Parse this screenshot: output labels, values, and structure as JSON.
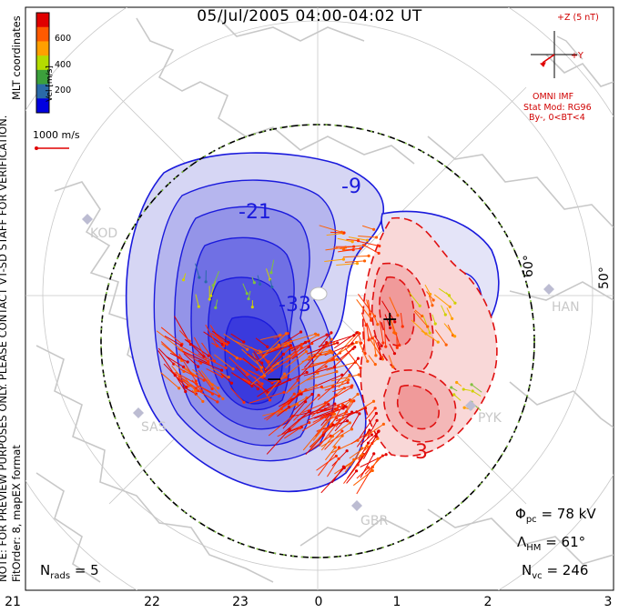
{
  "title": "05/Jul/2005 04:00-04:02 UT",
  "side_note_1": "NOTE: FOR PREVIEW PURPOSES ONLY. PLEASE CONTACT VT-SD STAFF FOR VERIFICATION.",
  "side_note_2": "FitOrder: 8, mapEX format",
  "coords_label": "MLT coordinates",
  "colorbar": {
    "title": "Vel [m/s]",
    "ticks": [
      "600",
      "400",
      "200"
    ],
    "colors": [
      "#e00000",
      "#ff5a00",
      "#ffa000",
      "#b4dc00",
      "#3ca03c",
      "#2a6aa8",
      "#0000e0"
    ]
  },
  "vector_scale": "1000 m/s",
  "imf": {
    "z_label": "+Z (5 nT)",
    "y_label": "+Y",
    "source": "OMNI IMF",
    "model": "Stat Mod: RG96",
    "model_condition": "By-, 0<BT<4"
  },
  "stats": {
    "phi_pc_label": "Φ",
    "phi_pc_sub": "pc",
    "phi_pc_value": "= 78 kV",
    "lambda_label": "Λ",
    "lambda_sub": "HM",
    "lambda_value": "= 61°",
    "nvc_label": "N",
    "nvc_sub": "vc",
    "nvc_value": "= 246",
    "nrads_label": "N",
    "nrads_sub": "rads",
    "nrads_value": "= 5"
  },
  "mlt_ticks": [
    "21",
    "22",
    "23",
    "0",
    "1",
    "2",
    "3"
  ],
  "lat_labels": [
    "60°",
    "50°"
  ],
  "stations": [
    "KOD",
    "HAN",
    "SAS",
    "PYK",
    "GBR"
  ],
  "contour_labels": [
    "-9",
    "-21",
    "-33",
    "3"
  ],
  "centre_marks": {
    "min": "−",
    "max": "+"
  },
  "colors": {
    "negative_potential": "#1a1adc",
    "positive_potential": "#e01010",
    "coastline": "#c8c8c8",
    "hm_boundary": "#000000",
    "boundary_dots": "#80c040"
  }
}
